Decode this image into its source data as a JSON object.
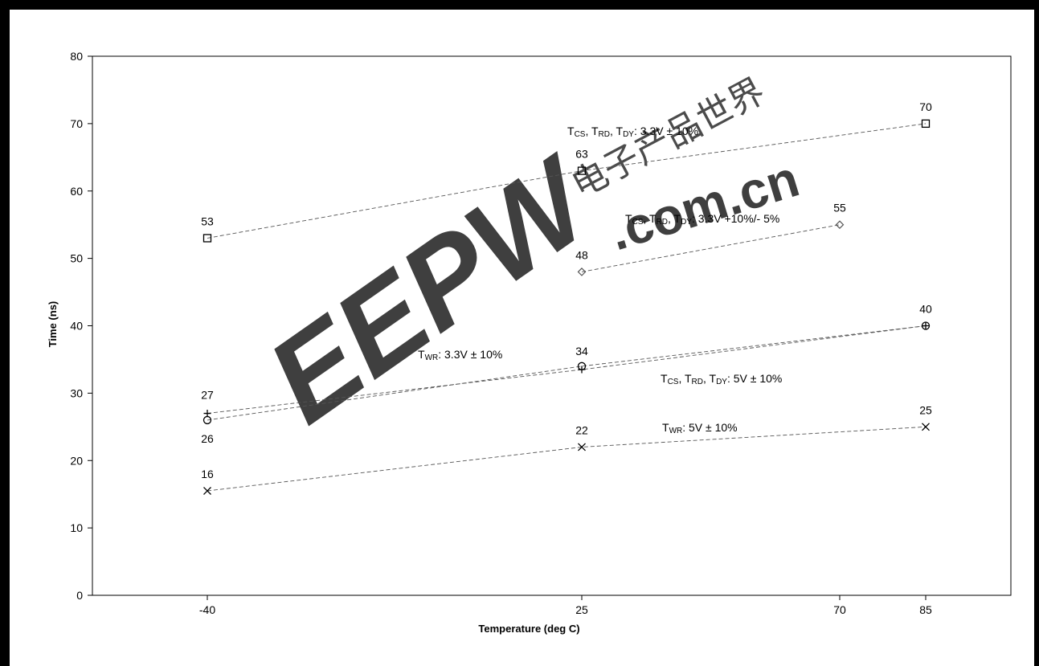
{
  "chart_data": {
    "type": "scatter",
    "title": "",
    "xlabel": "Temperature (deg C)",
    "ylabel": "Time (ns)",
    "x_categories": [
      "-40",
      "25",
      "70",
      "85"
    ],
    "ylim": [
      0,
      80
    ],
    "yticks": [
      "0",
      "10",
      "20",
      "30",
      "40",
      "50",
      "60",
      "70",
      "80"
    ],
    "grid": false,
    "legend": "none",
    "series": [
      {
        "marker": "square",
        "x": [
          -40,
          25,
          85
        ],
        "y": [
          53,
          63,
          70
        ],
        "labels": [
          "53",
          "63",
          "70"
        ],
        "annotation": {
          "base": [
            "T",
            "CS",
            ", T",
            "RD",
            ", T",
            "DY",
            ": 3.3V ± 10%"
          ]
        }
      },
      {
        "marker": "diamond",
        "x": [
          25,
          70
        ],
        "y": [
          48,
          55
        ],
        "labels": [
          "48",
          "55"
        ],
        "annotation": {
          "base": [
            "T",
            "CS",
            ", T",
            "RD",
            ", T",
            "DY",
            ": 3.3V +10%/- 5%"
          ]
        }
      },
      {
        "marker": "plus",
        "x": [
          -40,
          25,
          85
        ],
        "y": [
          27,
          33.5,
          40
        ],
        "labels": [
          "27",
          "",
          "40"
        ],
        "annotation": {
          "base": [
            "T",
            "WR",
            ": 3.3V ± 10%"
          ]
        }
      },
      {
        "marker": "circle",
        "x": [
          -40,
          25,
          85
        ],
        "y": [
          26,
          34,
          40
        ],
        "labels": [
          "26",
          "34",
          ""
        ],
        "annotation": {
          "base": [
            "T",
            "CS",
            ", T",
            "RD",
            ", T",
            "DY",
            ": 5V ± 10%"
          ]
        }
      },
      {
        "marker": "cross",
        "x": [
          -40,
          25,
          85
        ],
        "y": [
          15.5,
          22,
          25
        ],
        "labels": [
          "16",
          "22",
          "25"
        ],
        "annotation": {
          "base": [
            "T",
            "WR",
            ": 5V ± 10%"
          ]
        }
      }
    ],
    "watermark": {
      "brand": "EEPW",
      "domain": ".com.cn",
      "cjk": "电子产品世界"
    }
  }
}
